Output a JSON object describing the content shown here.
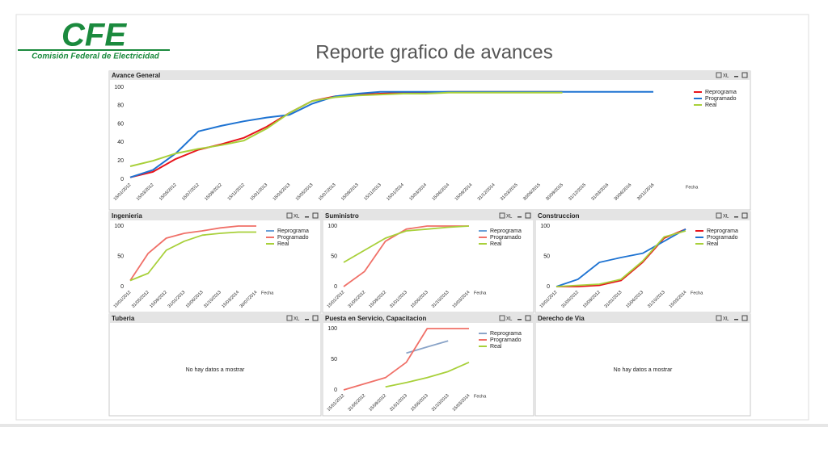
{
  "header": {
    "logo": "CFE",
    "logo_subtitle": "Comisión Federal de Electricidad",
    "title": "Reporte grafico de avances"
  },
  "toolbar_label": "XL",
  "chart_data": [
    {
      "type": "line",
      "title": "Avance General",
      "x_label": "Fecha",
      "categories": [
        "15/01/2012",
        "15/03/2012",
        "15/05/2012",
        "15/07/2012",
        "15/09/2012",
        "15/11/2012",
        "15/01/2013",
        "15/03/2013",
        "15/05/2013",
        "15/07/2013",
        "15/09/2013",
        "15/11/2013",
        "15/01/2014",
        "15/03/2014",
        "15/06/2014",
        "15/09/2014",
        "31/12/2014",
        "31/03/2015",
        "30/06/2015",
        "30/09/2015",
        "31/12/2015",
        "31/03/2016",
        "30/06/2016",
        "30/11/2016"
      ],
      "series": [
        {
          "name": "Reprograma",
          "color": "#e8141c",
          "values": [
            2,
            8,
            22,
            32,
            38,
            45,
            57,
            72,
            85,
            90,
            92,
            93,
            94,
            94,
            95,
            95,
            95,
            95,
            95,
            95,
            null,
            null,
            null,
            null
          ]
        },
        {
          "name": "Programado",
          "color": "#1e73d2",
          "values": [
            2,
            10,
            28,
            52,
            58,
            63,
            67,
            70,
            82,
            90,
            93,
            95,
            95,
            95,
            95,
            95,
            95,
            95,
            95,
            95,
            95,
            95,
            95,
            95
          ]
        },
        {
          "name": "Real",
          "color": "#a8d03a",
          "values": [
            14,
            20,
            28,
            33,
            37,
            42,
            55,
            72,
            85,
            89,
            91,
            92,
            93,
            93,
            94,
            94,
            94,
            94,
            94,
            94,
            null,
            null,
            null,
            null
          ]
        }
      ],
      "ylim": [
        0,
        100
      ],
      "yticks": [
        0,
        20,
        40,
        60,
        80,
        100
      ],
      "legend": "right"
    },
    {
      "type": "line",
      "title": "Ingenieria",
      "x_label": "Fecha",
      "categories": [
        "15/01/2012",
        "31/05/2012",
        "15/09/2012",
        "31/01/2013",
        "15/06/2013",
        "31/10/2013",
        "15/03/2014",
        "30/07/2014"
      ],
      "series": [
        {
          "name": "Reprograma",
          "color": "#6aa0d8",
          "values": [
            null,
            null,
            null,
            null,
            null,
            null,
            null,
            null
          ]
        },
        {
          "name": "Programado",
          "color": "#f07068",
          "values": [
            10,
            55,
            80,
            88,
            92,
            97,
            100,
            100
          ]
        },
        {
          "name": "Real",
          "color": "#a8d03a",
          "values": [
            10,
            22,
            60,
            75,
            85,
            88,
            90,
            90
          ]
        }
      ],
      "ylim": [
        0,
        100
      ],
      "yticks": [
        0,
        50,
        100
      ],
      "legend": "right"
    },
    {
      "type": "line",
      "title": "Suministro",
      "x_label": "Fecha",
      "categories": [
        "15/01/2012",
        "31/05/2012",
        "15/09/2012",
        "31/01/2013",
        "15/06/2013",
        "31/10/2013",
        "15/03/2014"
      ],
      "series": [
        {
          "name": "Reprograma",
          "color": "#6aa0d8",
          "values": [
            null,
            null,
            null,
            null,
            null,
            null,
            null
          ]
        },
        {
          "name": "Programado",
          "color": "#f07068",
          "values": [
            0,
            25,
            75,
            95,
            100,
            100,
            100
          ]
        },
        {
          "name": "Real",
          "color": "#a8d03a",
          "values": [
            40,
            60,
            80,
            92,
            95,
            98,
            100
          ]
        }
      ],
      "ylim": [
        0,
        100
      ],
      "yticks": [
        0,
        50,
        100
      ],
      "legend": "right"
    },
    {
      "type": "line",
      "title": "Construccion",
      "x_label": "Fecha",
      "categories": [
        "15/01/2012",
        "31/05/2012",
        "15/09/2012",
        "31/01/2013",
        "15/06/2013",
        "31/10/2013",
        "15/03/2014"
      ],
      "series": [
        {
          "name": "Reprograma",
          "color": "#e8141c",
          "values": [
            0,
            0,
            2,
            10,
            40,
            80,
            95
          ]
        },
        {
          "name": "Programado",
          "color": "#1e73d2",
          "values": [
            0,
            12,
            40,
            48,
            55,
            75,
            95
          ]
        },
        {
          "name": "Real",
          "color": "#a8d03a",
          "values": [
            0,
            2,
            4,
            12,
            42,
            82,
            92
          ]
        }
      ],
      "ylim": [
        0,
        100
      ],
      "yticks": [
        0,
        50,
        100
      ],
      "legend": "right"
    },
    {
      "type": "empty",
      "title": "Tuberia",
      "message": "No hay datos a mostrar"
    },
    {
      "type": "line",
      "title": "Puesta en Servicio, Capacitacion",
      "x_label": "Fecha",
      "categories": [
        "15/01/2012",
        "31/05/2012",
        "15/09/2012",
        "31/01/2013",
        "15/06/2013",
        "31/10/2013",
        "15/03/2014"
      ],
      "series": [
        {
          "name": "Reprograma",
          "color": "#8aa4c8",
          "values": [
            null,
            null,
            null,
            60,
            70,
            80,
            null
          ]
        },
        {
          "name": "Programado",
          "color": "#f07068",
          "values": [
            0,
            10,
            20,
            45,
            100,
            100,
            100
          ]
        },
        {
          "name": "Real",
          "color": "#a8d03a",
          "values": [
            null,
            null,
            5,
            12,
            20,
            30,
            45
          ]
        }
      ],
      "ylim": [
        0,
        100
      ],
      "yticks": [
        0,
        50,
        100
      ],
      "legend": "right"
    },
    {
      "type": "empty",
      "title": "Derecho de Via",
      "message": "No hay datos a mostrar"
    }
  ]
}
